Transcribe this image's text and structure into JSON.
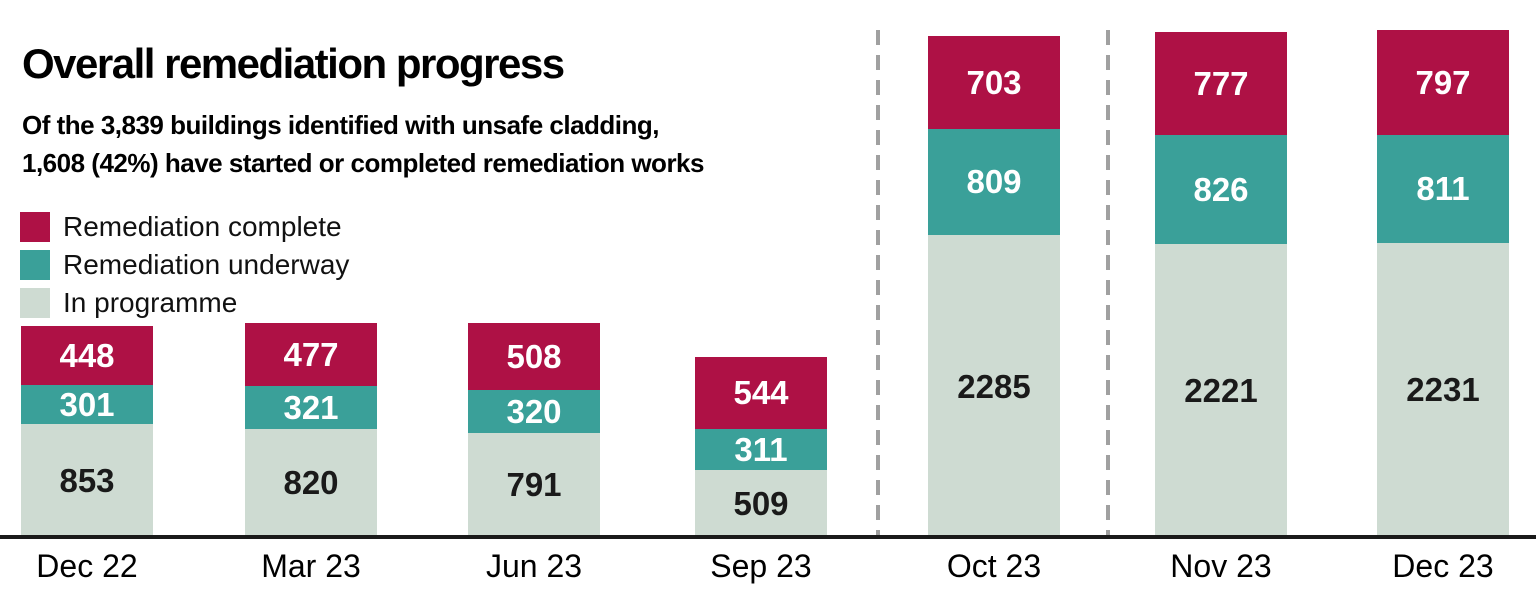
{
  "header": {
    "title": "Overall remediation progress",
    "subtitle_line1": "Of the 3,839 buildings identified with unsafe cladding,",
    "subtitle_line2": "1,608 (42%) have started or completed remediation works"
  },
  "legend": {
    "items": [
      {
        "label": "Remediation complete",
        "color": "#ae1145"
      },
      {
        "label": "Remediation underway",
        "color": "#3aa099"
      },
      {
        "label": "In programme",
        "color": "#cedbd2"
      }
    ]
  },
  "chart_data": {
    "type": "bar",
    "subtype": "stacked-vertical",
    "categories": [
      "Dec 22",
      "Mar 23",
      "Jun 23",
      "Sep 23",
      "Oct 23",
      "Nov 23",
      "Dec 23"
    ],
    "series": [
      {
        "name": "Remediation complete",
        "color": "#ae1145",
        "label_color": "#ffffff",
        "values": [
          448,
          477,
          508,
          544,
          703,
          777,
          797
        ]
      },
      {
        "name": "Remediation underway",
        "color": "#3aa099",
        "label_color": "#ffffff",
        "values": [
          301,
          321,
          320,
          311,
          809,
          826,
          811
        ]
      },
      {
        "name": "In programme",
        "color": "#cedbd2",
        "label_color": "#1a1a1a",
        "values": [
          853,
          820,
          791,
          509,
          2285,
          2221,
          2231
        ]
      }
    ],
    "totals": [
      1602,
      1618,
      1619,
      1364,
      3797,
      3824,
      3839
    ],
    "stack_order_top_to_bottom": [
      "Remediation complete",
      "Remediation underway",
      "In programme"
    ],
    "separators_after_categories": [
      "Sep 23",
      "Oct 23"
    ],
    "axis_color": "#1a1a1a",
    "separator_color": "#a0a0a0",
    "grid": false,
    "legend_position": "top-left",
    "value_labels": "inside-segments"
  }
}
